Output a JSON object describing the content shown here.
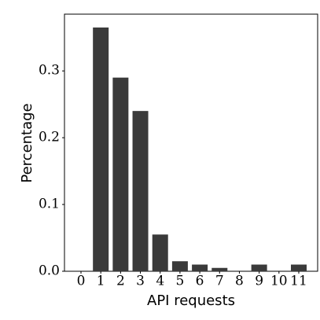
{
  "chart_data": {
    "type": "bar",
    "xlabel": "API requests",
    "ylabel": "Percentage",
    "categories": [
      "0",
      "1",
      "2",
      "3",
      "4",
      "5",
      "6",
      "7",
      "8",
      "9",
      "10",
      "11"
    ],
    "values": [
      0,
      0.365,
      0.29,
      0.24,
      0.055,
      0.015,
      0.01,
      0.005,
      0,
      0.01,
      0,
      0.01
    ],
    "color": "#3a3a3a",
    "ylim": [
      0,
      0.385
    ],
    "yticks": [
      {
        "value": 0,
        "label": "0.0"
      },
      0.1,
      0.2,
      0.3
    ]
  }
}
